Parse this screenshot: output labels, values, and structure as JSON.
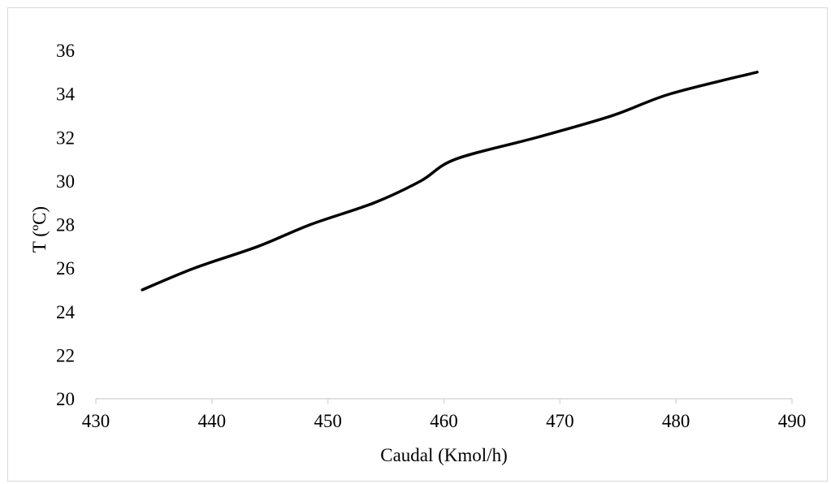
{
  "chart_data": {
    "type": "line",
    "title": "",
    "xlabel": "Caudal (Kmol/h)",
    "ylabel": "T (ºC)",
    "xlim": [
      430,
      490
    ],
    "ylim": [
      20,
      36
    ],
    "x_ticks": [
      430,
      440,
      450,
      460,
      470,
      480,
      490
    ],
    "y_ticks": [
      20,
      22,
      24,
      26,
      28,
      30,
      32,
      34,
      36
    ],
    "grid": false,
    "legend": "none",
    "series": [
      {
        "color": "#000000",
        "points": [
          {
            "x": 434,
            "y": 25
          },
          {
            "x": 438.5,
            "y": 26
          },
          {
            "x": 444,
            "y": 27
          },
          {
            "x": 448.5,
            "y": 28
          },
          {
            "x": 454,
            "y": 29
          },
          {
            "x": 458,
            "y": 30
          },
          {
            "x": 461,
            "y": 31
          },
          {
            "x": 468,
            "y": 32
          },
          {
            "x": 474.5,
            "y": 33
          },
          {
            "x": 479.5,
            "y": 34
          },
          {
            "x": 487,
            "y": 35
          }
        ]
      }
    ]
  }
}
